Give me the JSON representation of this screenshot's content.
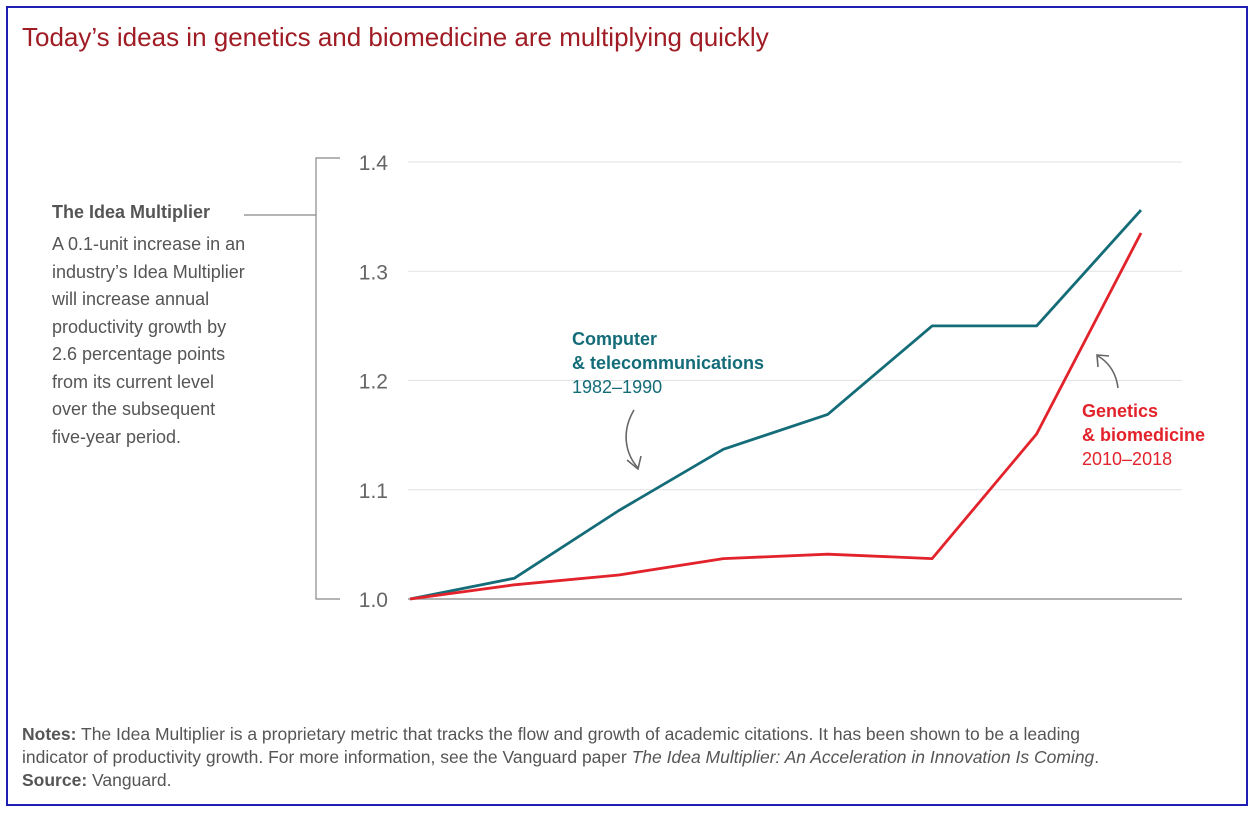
{
  "title": "Today’s ideas in genetics and biomedicine are multiplying quickly",
  "side": {
    "heading": "The Idea Multiplier",
    "body_lines": [
      "A 0.1-unit increase in an",
      "industry’s Idea Multiplier",
      "will increase annual",
      "productivity growth by",
      "2.6 percentage points",
      "from its current level",
      "over the subsequent",
      "five-year period."
    ]
  },
  "annotations": {
    "computer": {
      "line1": "Computer",
      "line2": "& telecommunications",
      "years": "1982–1990"
    },
    "genetics": {
      "line1": "Genetics",
      "line2": "& biomedicine",
      "years": "2010–2018"
    }
  },
  "notes": {
    "notes_label": "Notes:",
    "notes_text_1": "The Idea Multiplier is a proprietary metric that tracks the flow and growth of academic citations. It has been shown to be a leading",
    "notes_text_2": "indicator of productivity growth. For more information, see the Vanguard paper",
    "notes_italic": "The Idea Multiplier: An Acceleration in Innovation Is Coming",
    "notes_end": ".",
    "source_label": "Source:",
    "source_text": "Vanguard."
  },
  "colors": {
    "title": "#a01c24",
    "computer": "#146c78",
    "genetics": "#e2232b",
    "frame": "#1f1fb4"
  },
  "chart_data": {
    "type": "line",
    "x": [
      0,
      1,
      2,
      3,
      4,
      5,
      6,
      7
    ],
    "yticks": [
      "1.0",
      "1.1",
      "1.2",
      "1.3",
      "1.4"
    ],
    "ylim": [
      1.0,
      1.4
    ],
    "grid": true,
    "series": [
      {
        "name": "Computer & telecommunications 1982–1990",
        "values": [
          1.0,
          1.019,
          1.081,
          1.137,
          1.169,
          1.25,
          1.25,
          1.356
        ]
      },
      {
        "name": "Genetics & biomedicine 2010–2018",
        "values": [
          1.0,
          1.013,
          1.022,
          1.037,
          1.041,
          1.037,
          1.151,
          1.335
        ]
      }
    ]
  }
}
